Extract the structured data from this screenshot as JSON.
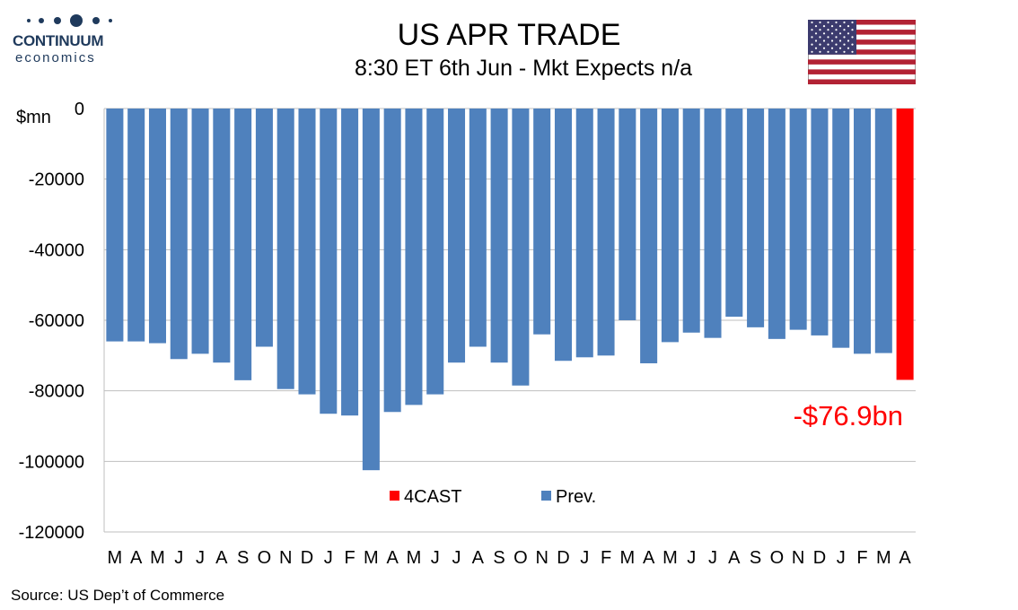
{
  "header": {
    "logo_name": "CONTINUUM",
    "logo_sub": "economics",
    "title": "US APR TRADE",
    "subtitle": "8:30 ET 6th Jun - Mkt Expects n/a"
  },
  "source": "Source: US Dep’t of Commerce",
  "colors": {
    "prev": "#4f81bd",
    "forecast": "#ff0000",
    "grid": "#bfbfbf",
    "logo": "#1f3a5c"
  },
  "icons": {
    "flag": "us-flag-icon"
  },
  "chart_data": {
    "type": "bar",
    "title": "US APR TRADE",
    "ylabel": "$mn",
    "xlabel": "",
    "ylim": [
      -120000,
      0
    ],
    "yticks": [
      0,
      -20000,
      -40000,
      -60000,
      -80000,
      -100000,
      -120000
    ],
    "grid": true,
    "legend_position": "bottom-center",
    "categories": [
      "M",
      "A",
      "M",
      "J",
      "J",
      "A",
      "S",
      "O",
      "N",
      "D",
      "J",
      "F",
      "M",
      "A",
      "M",
      "J",
      "J",
      "A",
      "S",
      "O",
      "N",
      "D",
      "J",
      "F",
      "M",
      "A",
      "M",
      "J",
      "J",
      "A",
      "S",
      "O",
      "N",
      "D",
      "J",
      "F",
      "M",
      "A"
    ],
    "series": [
      {
        "name": "Prev.",
        "values": [
          -66000,
          -66000,
          -66500,
          -71000,
          -69500,
          -72000,
          -77000,
          -67500,
          -79500,
          -81000,
          -86500,
          -87000,
          -102500,
          -86000,
          -84000,
          -81000,
          -72000,
          -67500,
          -72000,
          -78500,
          -64000,
          -71500,
          -70500,
          -70000,
          -60000,
          -72200,
          -66200,
          -63500,
          -65000,
          -59000,
          -62000,
          -65300,
          -62700,
          -64300,
          -67800,
          -69500,
          -69300,
          null
        ]
      },
      {
        "name": "4CAST",
        "values": [
          null,
          null,
          null,
          null,
          null,
          null,
          null,
          null,
          null,
          null,
          null,
          null,
          null,
          null,
          null,
          null,
          null,
          null,
          null,
          null,
          null,
          null,
          null,
          null,
          null,
          null,
          null,
          null,
          null,
          null,
          null,
          null,
          null,
          null,
          null,
          null,
          null,
          -76900
        ]
      }
    ],
    "annotations": [
      {
        "text": "-$76.9bn",
        "series": "4CAST",
        "color": "#ff0000"
      }
    ]
  }
}
